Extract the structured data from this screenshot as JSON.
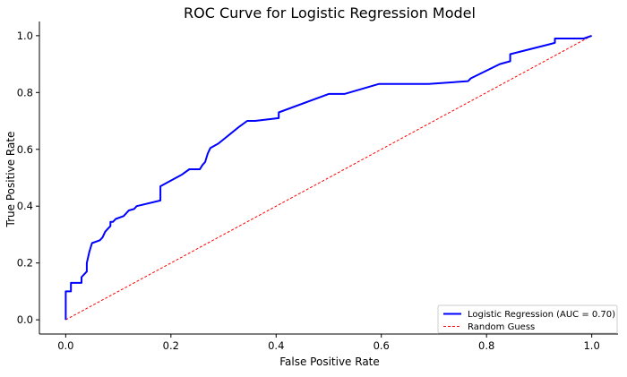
{
  "chart_data": {
    "type": "line",
    "title": "ROC Curve for Logistic Regression Model",
    "xlabel": "False Positive Rate",
    "ylabel": "True Positive Rate",
    "xlim": [
      -0.05,
      1.05
    ],
    "ylim": [
      -0.05,
      1.05
    ],
    "xticks": [
      "0.0",
      "0.2",
      "0.4",
      "0.6",
      "0.8",
      "1.0"
    ],
    "yticks": [
      "0.0",
      "0.2",
      "0.4",
      "0.6",
      "0.8",
      "1.0"
    ],
    "grid": false,
    "legend_position": "lower-right",
    "series": [
      {
        "name": "Logistic Regression (AUC = 0.70)",
        "color": "#0000ff",
        "style": "solid",
        "points": [
          [
            0.0,
            0.0
          ],
          [
            0.0,
            0.1
          ],
          [
            0.01,
            0.1
          ],
          [
            0.01,
            0.13
          ],
          [
            0.03,
            0.13
          ],
          [
            0.03,
            0.15
          ],
          [
            0.04,
            0.17
          ],
          [
            0.04,
            0.2
          ],
          [
            0.045,
            0.24
          ],
          [
            0.05,
            0.27
          ],
          [
            0.065,
            0.28
          ],
          [
            0.07,
            0.29
          ],
          [
            0.075,
            0.31
          ],
          [
            0.08,
            0.32
          ],
          [
            0.085,
            0.33
          ],
          [
            0.085,
            0.345
          ],
          [
            0.09,
            0.345
          ],
          [
            0.095,
            0.355
          ],
          [
            0.11,
            0.365
          ],
          [
            0.115,
            0.375
          ],
          [
            0.12,
            0.385
          ],
          [
            0.13,
            0.39
          ],
          [
            0.135,
            0.4
          ],
          [
            0.18,
            0.42
          ],
          [
            0.18,
            0.47
          ],
          [
            0.22,
            0.51
          ],
          [
            0.235,
            0.53
          ],
          [
            0.255,
            0.53
          ],
          [
            0.26,
            0.545
          ],
          [
            0.265,
            0.555
          ],
          [
            0.27,
            0.585
          ],
          [
            0.275,
            0.605
          ],
          [
            0.29,
            0.62
          ],
          [
            0.33,
            0.68
          ],
          [
            0.345,
            0.7
          ],
          [
            0.36,
            0.7
          ],
          [
            0.405,
            0.71
          ],
          [
            0.405,
            0.73
          ],
          [
            0.5,
            0.795
          ],
          [
            0.53,
            0.795
          ],
          [
            0.595,
            0.83
          ],
          [
            0.69,
            0.83
          ],
          [
            0.765,
            0.84
          ],
          [
            0.77,
            0.85
          ],
          [
            0.825,
            0.9
          ],
          [
            0.845,
            0.91
          ],
          [
            0.845,
            0.935
          ],
          [
            0.92,
            0.97
          ],
          [
            0.93,
            0.975
          ],
          [
            0.93,
            0.99
          ],
          [
            0.985,
            0.99
          ],
          [
            1.0,
            1.0
          ]
        ]
      },
      {
        "name": "Random Guess",
        "color": "#ff0000",
        "style": "dashed",
        "points": [
          [
            0.0,
            0.0
          ],
          [
            1.0,
            1.0
          ]
        ]
      }
    ]
  }
}
